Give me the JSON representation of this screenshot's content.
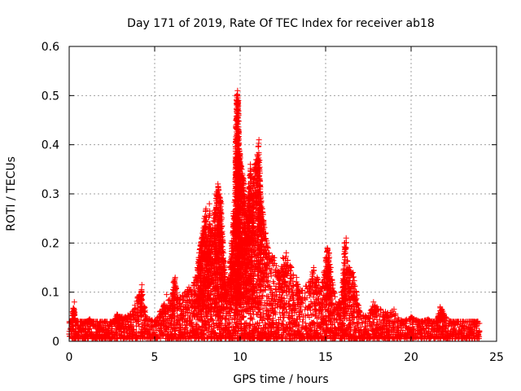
{
  "chart_data": {
    "type": "scatter",
    "title": "Day 171 of 2019, Rate Of TEC Index for receiver ab18",
    "xlabel": "GPS time / hours",
    "ylabel": "ROTI / TECUs",
    "xlim": [
      0,
      25
    ],
    "ylim": [
      0,
      0.6
    ],
    "xticks": [
      "0",
      "5",
      "10",
      "15",
      "20",
      "25"
    ],
    "yticks": [
      "0",
      "0.1",
      "0.2",
      "0.3",
      "0.4",
      "0.5",
      "0.6"
    ],
    "grid": true,
    "marker": "+",
    "series": [
      {
        "name": "ROTI",
        "color": "#ff0000",
        "points": [
          [
            0.0,
            0.015
          ],
          [
            0.1,
            0.02
          ],
          [
            0.2,
            0.06
          ],
          [
            0.3,
            0.08
          ],
          [
            0.35,
            0.04
          ],
          [
            0.5,
            0.03
          ],
          [
            0.7,
            0.025
          ],
          [
            1.0,
            0.04
          ],
          [
            1.2,
            0.045
          ],
          [
            1.5,
            0.03
          ],
          [
            2.0,
            0.03
          ],
          [
            2.5,
            0.035
          ],
          [
            2.8,
            0.055
          ],
          [
            3.0,
            0.05
          ],
          [
            3.3,
            0.05
          ],
          [
            3.7,
            0.06
          ],
          [
            4.0,
            0.09
          ],
          [
            4.2,
            0.1
          ],
          [
            4.25,
            0.115
          ],
          [
            4.5,
            0.05
          ],
          [
            5.0,
            0.04
          ],
          [
            5.3,
            0.06
          ],
          [
            5.5,
            0.07
          ],
          [
            5.7,
            0.095
          ],
          [
            6.0,
            0.08
          ],
          [
            6.1,
            0.12
          ],
          [
            6.2,
            0.13
          ],
          [
            6.5,
            0.09
          ],
          [
            6.8,
            0.1
          ],
          [
            7.0,
            0.11
          ],
          [
            7.3,
            0.12
          ],
          [
            7.5,
            0.15
          ],
          [
            7.6,
            0.18
          ],
          [
            7.7,
            0.2
          ],
          [
            7.8,
            0.22
          ],
          [
            7.9,
            0.25
          ],
          [
            8.0,
            0.27
          ],
          [
            8.1,
            0.2
          ],
          [
            8.2,
            0.28
          ],
          [
            8.3,
            0.22
          ],
          [
            8.5,
            0.26
          ],
          [
            8.6,
            0.3
          ],
          [
            8.7,
            0.32
          ],
          [
            8.8,
            0.3
          ],
          [
            8.9,
            0.28
          ],
          [
            9.0,
            0.2
          ],
          [
            9.1,
            0.15
          ],
          [
            9.2,
            0.1
          ],
          [
            9.4,
            0.16
          ],
          [
            9.5,
            0.2
          ],
          [
            9.6,
            0.26
          ],
          [
            9.7,
            0.3
          ],
          [
            9.75,
            0.45
          ],
          [
            9.8,
            0.5
          ],
          [
            9.85,
            0.51
          ],
          [
            9.9,
            0.49
          ],
          [
            9.95,
            0.39
          ],
          [
            10.0,
            0.38
          ],
          [
            10.1,
            0.35
          ],
          [
            10.2,
            0.33
          ],
          [
            10.3,
            0.28
          ],
          [
            10.4,
            0.25
          ],
          [
            10.5,
            0.32
          ],
          [
            10.6,
            0.36
          ],
          [
            10.7,
            0.3
          ],
          [
            10.8,
            0.35
          ],
          [
            11.0,
            0.38
          ],
          [
            11.1,
            0.41
          ],
          [
            11.2,
            0.3
          ],
          [
            11.3,
            0.27
          ],
          [
            11.5,
            0.22
          ],
          [
            11.7,
            0.18
          ],
          [
            12.0,
            0.17
          ],
          [
            12.3,
            0.14
          ],
          [
            12.5,
            0.17
          ],
          [
            12.7,
            0.18
          ],
          [
            13.0,
            0.15
          ],
          [
            13.3,
            0.13
          ],
          [
            13.5,
            0.1
          ],
          [
            14.0,
            0.12
          ],
          [
            14.3,
            0.15
          ],
          [
            14.5,
            0.13
          ],
          [
            14.8,
            0.12
          ],
          [
            15.0,
            0.17
          ],
          [
            15.1,
            0.19
          ],
          [
            15.2,
            0.18
          ],
          [
            15.3,
            0.15
          ],
          [
            15.5,
            0.1
          ],
          [
            15.8,
            0.08
          ],
          [
            16.0,
            0.12
          ],
          [
            16.1,
            0.2
          ],
          [
            16.2,
            0.21
          ],
          [
            16.4,
            0.15
          ],
          [
            16.6,
            0.14
          ],
          [
            16.8,
            0.1
          ],
          [
            17.0,
            0.06
          ],
          [
            17.5,
            0.05
          ],
          [
            17.8,
            0.08
          ],
          [
            18.0,
            0.07
          ],
          [
            18.5,
            0.06
          ],
          [
            19.0,
            0.065
          ],
          [
            19.5,
            0.04
          ],
          [
            20.0,
            0.05
          ],
          [
            20.5,
            0.04
          ],
          [
            21.0,
            0.045
          ],
          [
            21.5,
            0.04
          ],
          [
            21.7,
            0.07
          ],
          [
            21.8,
            0.065
          ],
          [
            22.0,
            0.05
          ],
          [
            22.5,
            0.035
          ],
          [
            23.0,
            0.04
          ],
          [
            23.5,
            0.04
          ],
          [
            23.8,
            0.03
          ],
          [
            24.0,
            0.02
          ]
        ]
      }
    ],
    "baseline_band": {
      "note": "dense cloud of low ROTI values between roughly 0.005 and 0.04 TECUs across 0-24 h",
      "x_range": [
        0,
        24
      ],
      "y_range": [
        0.005,
        0.04
      ]
    }
  }
}
